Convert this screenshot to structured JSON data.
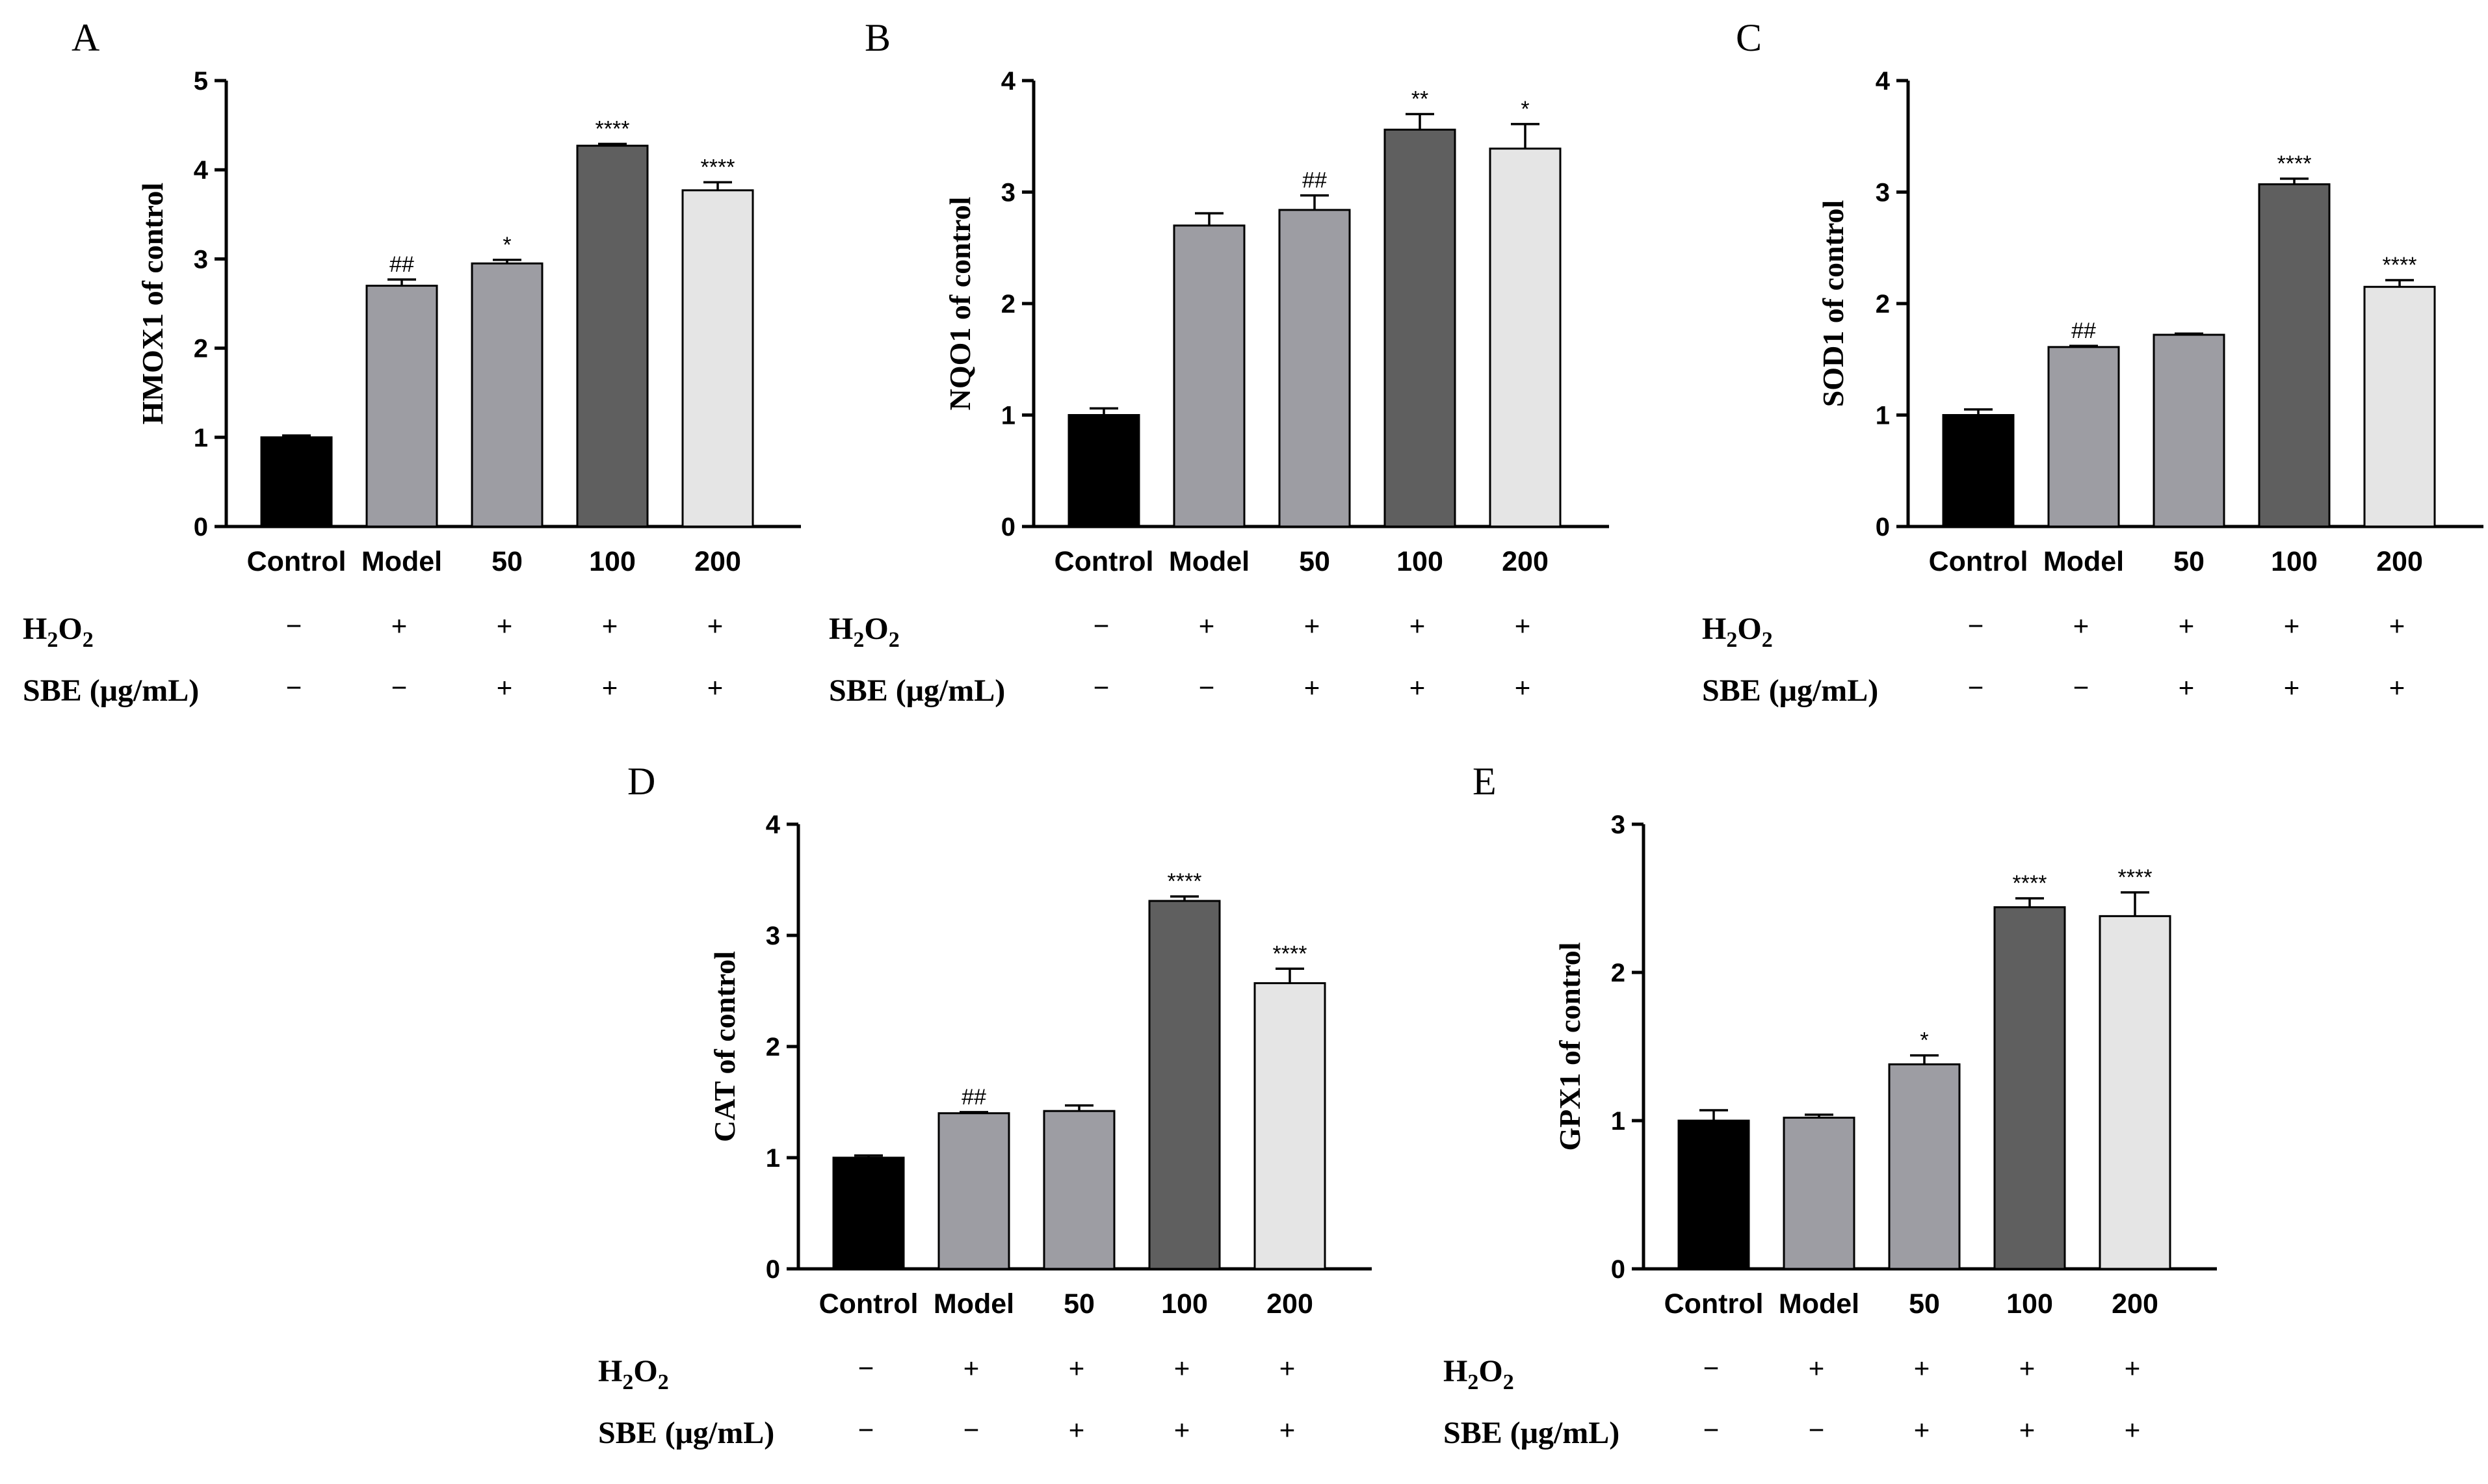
{
  "figure": {
    "row_labels": {
      "h2o2_main": "H",
      "h2o2_sub1": "2",
      "h2o2_o": "O",
      "h2o2_sub2": "2",
      "sbe": "SBE (μg/mL)"
    },
    "treatment_signs": {
      "h2o2": [
        "−",
        "+",
        "+",
        "+",
        "+"
      ],
      "sbe": [
        "−",
        "−",
        "+",
        "+",
        "+"
      ]
    }
  },
  "colors": {
    "bars": [
      "#000000",
      "#9d9da3",
      "#9d9da3",
      "#5f5f5f",
      "#e5e5e5"
    ],
    "outline": "#000000"
  },
  "chart_data": [
    {
      "type": "bar",
      "panel": "A",
      "title": "",
      "xlabel": "",
      "ylabel": "HMOX1 of control",
      "categories": [
        "Control",
        "Model",
        "50",
        "100",
        "200"
      ],
      "values": [
        1.0,
        2.7,
        2.95,
        4.27,
        3.77
      ],
      "errors": [
        0.02,
        0.07,
        0.04,
        0.02,
        0.09
      ],
      "significance": [
        "",
        "##",
        "*",
        "****",
        "****"
      ],
      "ylim": [
        0,
        5
      ],
      "yticks": [
        "0",
        "1",
        "2",
        "3",
        "4",
        "5"
      ]
    },
    {
      "type": "bar",
      "panel": "B",
      "title": "",
      "xlabel": "",
      "ylabel": "NQO1 of control",
      "categories": [
        "Control",
        "Model",
        "50",
        "100",
        "200"
      ],
      "values": [
        1.0,
        2.7,
        2.84,
        3.56,
        3.39
      ],
      "errors": [
        0.06,
        0.11,
        0.13,
        0.14,
        0.22
      ],
      "significance": [
        "",
        "",
        "##",
        "**",
        "*"
      ],
      "ylim": [
        0,
        4
      ],
      "yticks": [
        "0",
        "1",
        "2",
        "3",
        "4"
      ]
    },
    {
      "type": "bar",
      "panel": "C",
      "title": "",
      "xlabel": "",
      "ylabel": "SOD1 of control",
      "categories": [
        "Control",
        "Model",
        "50",
        "100",
        "200"
      ],
      "values": [
        1.0,
        1.61,
        1.72,
        3.07,
        2.15
      ],
      "errors": [
        0.05,
        0.01,
        0.01,
        0.05,
        0.06
      ],
      "significance": [
        "",
        "##",
        "",
        "****",
        "****"
      ],
      "ylim": [
        0,
        4
      ],
      "yticks": [
        "0",
        "1",
        "2",
        "3",
        "4"
      ]
    },
    {
      "type": "bar",
      "panel": "D",
      "title": "",
      "xlabel": "",
      "ylabel": "CAT of control",
      "categories": [
        "Control",
        "Model",
        "50",
        "100",
        "200"
      ],
      "values": [
        1.0,
        1.4,
        1.42,
        3.31,
        2.57
      ],
      "errors": [
        0.02,
        0.01,
        0.05,
        0.04,
        0.13
      ],
      "significance": [
        "",
        "##",
        "",
        "****",
        "****"
      ],
      "ylim": [
        0,
        4
      ],
      "yticks": [
        "0",
        "1",
        "2",
        "3",
        "4"
      ]
    },
    {
      "type": "bar",
      "panel": "E",
      "title": "",
      "xlabel": "",
      "ylabel": "GPX1 of control",
      "categories": [
        "Control",
        "Model",
        "50",
        "100",
        "200"
      ],
      "values": [
        1.0,
        1.02,
        1.38,
        2.44,
        2.38
      ],
      "errors": [
        0.07,
        0.02,
        0.06,
        0.06,
        0.16
      ],
      "significance": [
        "",
        "",
        "*",
        "****",
        "****"
      ],
      "ylim": [
        0,
        3
      ],
      "yticks": [
        "0",
        "1",
        "2",
        "3"
      ]
    }
  ]
}
